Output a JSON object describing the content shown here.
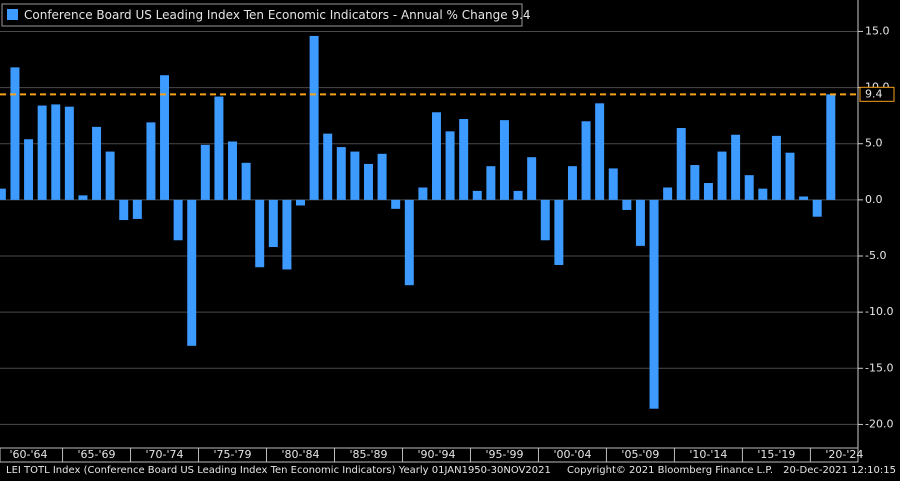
{
  "chart_data": {
    "type": "bar",
    "series": [
      {
        "name": "Conference Board US Leading Index Ten Economic Indicators - Annual % Change",
        "color": "#3d9bff",
        "values": [
          1.0,
          11.8,
          5.4,
          8.4,
          8.5,
          8.3,
          0.4,
          6.5,
          4.3,
          -1.8,
          -1.7,
          6.9,
          11.1,
          -3.6,
          -13.0,
          4.9,
          9.2,
          5.2,
          3.3,
          -6.0,
          -4.2,
          -6.2,
          -0.5,
          14.6,
          5.9,
          4.7,
          4.3,
          3.2,
          4.1,
          -0.8,
          -7.6,
          1.1,
          7.8,
          6.1,
          7.2,
          0.8,
          3.0,
          7.1,
          0.8,
          3.8,
          -3.6,
          -5.8,
          3.0,
          7.0,
          8.6,
          2.8,
          -0.9,
          -4.1,
          -18.6,
          1.1,
          6.4,
          3.1,
          1.5,
          4.3,
          5.8,
          2.2,
          1.0,
          5.7,
          4.2,
          0.3,
          -1.5,
          9.4
        ]
      }
    ],
    "x": [
      1960,
      1961,
      1962,
      1963,
      1964,
      1965,
      1966,
      1967,
      1968,
      1969,
      1970,
      1971,
      1972,
      1973,
      1974,
      1975,
      1976,
      1977,
      1978,
      1979,
      1980,
      1981,
      1982,
      1983,
      1984,
      1985,
      1986,
      1987,
      1988,
      1989,
      1990,
      1991,
      1992,
      1993,
      1994,
      1995,
      1996,
      1997,
      1998,
      1999,
      2000,
      2001,
      2002,
      2003,
      2004,
      2005,
      2006,
      2007,
      2008,
      2009,
      2010,
      2011,
      2012,
      2013,
      2014,
      2015,
      2016,
      2017,
      2018,
      2019,
      2020,
      2021
    ],
    "xlim": [
      1959.9,
      2023
    ],
    "xticks": [
      {
        "value": 1962,
        "label": "'60-'64"
      },
      {
        "value": 1967,
        "label": "'65-'69"
      },
      {
        "value": 1972,
        "label": "'70-'74"
      },
      {
        "value": 1977,
        "label": "'75-'79"
      },
      {
        "value": 1982,
        "label": "'80-'84"
      },
      {
        "value": 1987,
        "label": "'85-'89"
      },
      {
        "value": 1992,
        "label": "'90-'94"
      },
      {
        "value": 1997,
        "label": "'95-'99"
      },
      {
        "value": 2002,
        "label": "'00-'04"
      },
      {
        "value": 2007,
        "label": "'05-'09"
      },
      {
        "value": 2012,
        "label": "'10-'14"
      },
      {
        "value": 2017,
        "label": "'15-'19"
      },
      {
        "value": 2022,
        "label": "'20-'24"
      }
    ],
    "ylim": [
      -22.1,
      17.8
    ],
    "yticks": [
      {
        "value": 15,
        "label": "15.0"
      },
      {
        "value": 10,
        "label": "10.0"
      },
      {
        "value": 5,
        "label": "5.0"
      },
      {
        "value": 0,
        "label": "0.0"
      },
      {
        "value": -5,
        "label": "-5.0"
      },
      {
        "value": -10,
        "label": "-10.0"
      },
      {
        "value": -15,
        "label": "-15.0"
      },
      {
        "value": -20,
        "label": "-20.0"
      }
    ],
    "grid": true,
    "last_value_line_color": "#f7a21b",
    "footer": {
      "source": "LEI TOTL Index (Conference Board US Leading Index Ten Economic Indicators)  Yearly 01JAN1950-30NOV2021",
      "copyright": "Copyright© 2021 Bloomberg Finance L.P.",
      "timestamp": "20-Dec-2021 12:10:15"
    }
  }
}
